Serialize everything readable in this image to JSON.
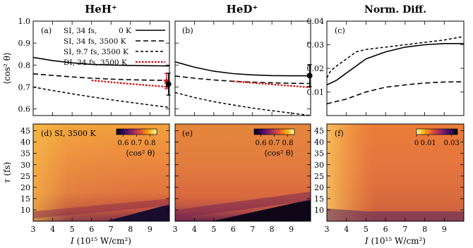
{
  "chart_data": {
    "type": "multi-panel",
    "column_titles": [
      "HeH⁺",
      "HeD⁺",
      "Norm. Diff."
    ],
    "x_axis": {
      "label_italic": "I",
      "label_rest": " (10¹⁵ W/cm²)",
      "range": [
        3,
        10
      ],
      "ticks": [
        3,
        4,
        5,
        6,
        7,
        8,
        9
      ]
    },
    "top_row": {
      "ylabel": "⟨cos² θ⟩",
      "panels": [
        {
          "tag": "(a)",
          "ylim": [
            0.57,
            1.0
          ],
          "yticks": [
            0.6,
            0.7,
            0.8,
            0.9,
            1.0
          ],
          "ytick_labels": [
            "0.6",
            "0.7",
            "0.8",
            "0.9",
            "1.0"
          ],
          "legend": [
            {
              "text": "SI, 34 fs,",
              "temp": "0 K",
              "style": "solid"
            },
            {
              "text": "SI, 34 fs, 3500 K",
              "temp": "",
              "style": "dashed"
            },
            {
              "text": "SI, 9.7 fs, 3500 K",
              "temp": "",
              "style": "dotted"
            },
            {
              "text": "DI, 34 fs, 3500 K",
              "temp": "",
              "style": "red-dotted"
            }
          ],
          "series": [
            {
              "style": "solid",
              "x": [
                3,
                4,
                5,
                6,
                7,
                8,
                9,
                10
              ],
              "y": [
                0.835,
                0.82,
                0.81,
                0.803,
                0.8,
                0.798,
                0.797,
                0.796
              ]
            },
            {
              "style": "dashed",
              "x": [
                3,
                4,
                5,
                6,
                7,
                8,
                9,
                10
              ],
              "y": [
                0.76,
                0.753,
                0.746,
                0.74,
                0.736,
                0.733,
                0.731,
                0.73
              ]
            },
            {
              "style": "dotted",
              "x": [
                3,
                4,
                5,
                6,
                7,
                8,
                9,
                10
              ],
              "y": [
                0.7,
                0.684,
                0.669,
                0.655,
                0.642,
                0.63,
                0.618,
                0.607
              ]
            },
            {
              "style": "red-dotted",
              "x": [
                6,
                7,
                8,
                9,
                10
              ],
              "y": [
                0.73,
                0.722,
                0.714,
                0.707,
                0.7
              ]
            }
          ],
          "markers": [
            {
              "kind": "red-star",
              "x": 9.85,
              "y": 0.727,
              "err": 0.035
            },
            {
              "kind": "black-dot",
              "x": 9.95,
              "y": 0.713,
              "err": 0.05
            }
          ]
        },
        {
          "tag": "(b)",
          "ylim": [
            0.57,
            1.0
          ],
          "yticks": [
            0.6,
            0.7,
            0.8,
            0.9,
            1.0
          ],
          "series": [
            {
              "style": "solid",
              "x": [
                3,
                4,
                5,
                6,
                7,
                8,
                9,
                10
              ],
              "y": [
                0.815,
                0.79,
                0.772,
                0.761,
                0.755,
                0.752,
                0.751,
                0.751
              ]
            },
            {
              "style": "dashed",
              "x": [
                3,
                4,
                5,
                6,
                7,
                8,
                9,
                10
              ],
              "y": [
                0.75,
                0.74,
                0.732,
                0.726,
                0.722,
                0.719,
                0.717,
                0.716
              ]
            },
            {
              "style": "dotted",
              "x": [
                3,
                4,
                5,
                6,
                7,
                8,
                9,
                10
              ],
              "y": [
                0.675,
                0.652,
                0.633,
                0.618,
                0.604,
                0.592,
                0.581,
                0.57
              ]
            },
            {
              "style": "red-dotted",
              "x": [
                6,
                7,
                8,
                9,
                10
              ],
              "y": [
                0.726,
                0.719,
                0.712,
                0.705,
                0.698
              ]
            }
          ],
          "markers": [
            {
              "kind": "black-dot",
              "x": 9.95,
              "y": 0.752,
              "err": 0.05
            }
          ]
        },
        {
          "tag": "(c)",
          "ylim": [
            0.0,
            0.04
          ],
          "yticks": [
            0.01,
            0.02,
            0.03,
            0.04
          ],
          "ytick_labels": [
            "0.01",
            "0.02",
            "0.03",
            "0.04"
          ],
          "series": [
            {
              "style": "solid",
              "x": [
                3,
                3.5,
                4,
                4.5,
                5,
                6,
                7,
                8,
                9,
                10
              ],
              "y": [
                0.013,
                0.015,
                0.018,
                0.021,
                0.024,
                0.027,
                0.029,
                0.03,
                0.0305,
                0.0305
              ]
            },
            {
              "style": "dashed",
              "x": [
                3,
                3.5,
                4,
                4.5,
                5,
                6,
                7,
                8,
                9,
                10
              ],
              "y": [
                0.005,
                0.006,
                0.007,
                0.0085,
                0.01,
                0.012,
                0.013,
                0.0138,
                0.0142,
                0.0143
              ]
            },
            {
              "style": "dotted",
              "x": [
                3,
                3.2,
                3.5,
                4,
                4.5,
                5,
                6,
                7,
                8,
                9,
                10
              ],
              "y": [
                0.016,
                0.019,
                0.021,
                0.024,
                0.027,
                0.028,
                0.029,
                0.03,
                0.031,
                0.032,
                0.0335
              ]
            }
          ]
        }
      ]
    },
    "bottom_row": {
      "ylabel_italic": "τ",
      "ylabel_rest": " (fs)",
      "ylim": [
        5,
        48
      ],
      "yticks": [
        10,
        15,
        20,
        25,
        30,
        35,
        40,
        45
      ],
      "panels": [
        {
          "tag": "(d) SI, 3500 K",
          "colorbar": {
            "ticks": [
              0.6,
              0.7,
              0.8
            ],
            "tick_labels": [
              "0.6",
              "0.7",
              "0.8"
            ],
            "range": [
              0.55,
              0.85
            ],
            "label": "⟨cos² θ⟩",
            "colormap": "inferno"
          }
        },
        {
          "tag": "(e)",
          "colorbar": {
            "ticks": [
              0.6,
              0.7,
              0.8
            ],
            "tick_labels": [
              "0.6",
              "0.7",
              "0.8"
            ],
            "range": [
              0.55,
              0.85
            ],
            "label": "⟨cos² θ⟩",
            "colormap": "inferno"
          }
        },
        {
          "tag": "(f)",
          "colorbar": {
            "ticks": [
              0,
              0.01,
              0.03
            ],
            "tick_labels": [
              "0",
              "0.01",
              "0.03"
            ],
            "range": [
              0,
              0.035
            ],
            "label": "",
            "colormap": "inferno-reversed"
          }
        }
      ]
    }
  }
}
